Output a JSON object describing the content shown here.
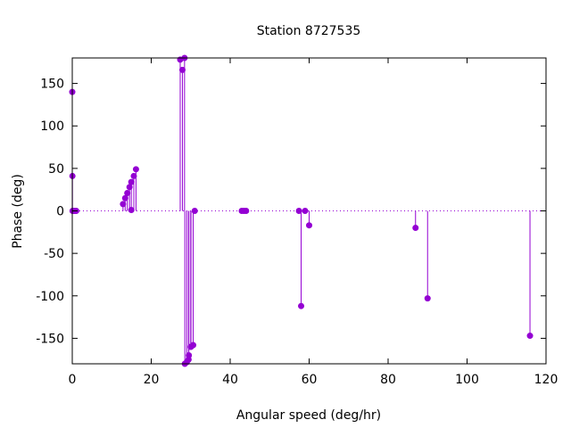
{
  "chart_data": {
    "type": "stem",
    "title": "Station 8727535",
    "xlabel": "Angular speed (deg/hr)",
    "ylabel": "Phase (deg)",
    "xlim": [
      0,
      120
    ],
    "ylim": [
      -180,
      180
    ],
    "xticks": [
      0,
      20,
      40,
      60,
      80,
      100,
      120
    ],
    "xtick_labels": [
      "0",
      "20",
      "40",
      "60",
      "80",
      "100",
      "120"
    ],
    "yticks": [
      -150,
      -100,
      -50,
      0,
      50,
      100,
      150
    ],
    "ytick_labels": [
      "-150",
      "-100",
      "-50",
      "0",
      "50",
      "100",
      "150"
    ],
    "zero_line": true,
    "grid": false,
    "legend": "none",
    "series_color": "#9400d3",
    "points": [
      {
        "x": 0.0,
        "y": 140
      },
      {
        "x": 0.04,
        "y": 41
      },
      {
        "x": 0.08,
        "y": 0
      },
      {
        "x": 0.5,
        "y": 0
      },
      {
        "x": 0.55,
        "y": 0
      },
      {
        "x": 1.0,
        "y": 0
      },
      {
        "x": 12.85,
        "y": 8
      },
      {
        "x": 13.4,
        "y": 15
      },
      {
        "x": 13.94,
        "y": 21
      },
      {
        "x": 14.5,
        "y": 28
      },
      {
        "x": 14.96,
        "y": 34
      },
      {
        "x": 14.96,
        "y": 1
      },
      {
        "x": 15.59,
        "y": 41
      },
      {
        "x": 16.14,
        "y": 49
      },
      {
        "x": 27.34,
        "y": 178
      },
      {
        "x": 27.9,
        "y": 166
      },
      {
        "x": 28.44,
        "y": 180
      },
      {
        "x": 28.51,
        "y": -180
      },
      {
        "x": 29.0,
        "y": -178
      },
      {
        "x": 29.46,
        "y": -175
      },
      {
        "x": 29.53,
        "y": -170
      },
      {
        "x": 30.0,
        "y": -160
      },
      {
        "x": 30.08,
        "y": -160
      },
      {
        "x": 30.63,
        "y": -158
      },
      {
        "x": 31.02,
        "y": 0
      },
      {
        "x": 42.93,
        "y": 0
      },
      {
        "x": 43.48,
        "y": 0
      },
      {
        "x": 44.03,
        "y": 0
      },
      {
        "x": 57.42,
        "y": 0
      },
      {
        "x": 57.97,
        "y": -112
      },
      {
        "x": 58.98,
        "y": 0
      },
      {
        "x": 60.0,
        "y": -17
      },
      {
        "x": 86.95,
        "y": -20
      },
      {
        "x": 90.0,
        "y": -103
      },
      {
        "x": 115.94,
        "y": -147
      }
    ]
  }
}
